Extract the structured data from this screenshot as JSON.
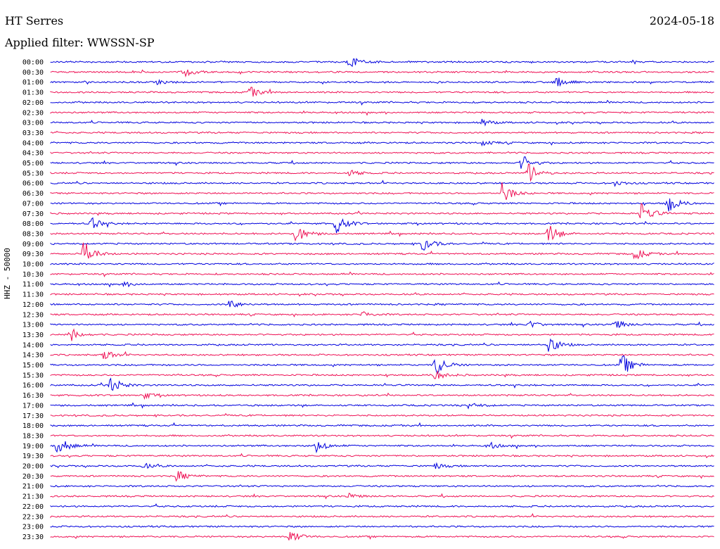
{
  "header": {
    "station": "HT Serres",
    "date": "2024-05-18",
    "filter_label": "Applied filter: WWSSN-SP"
  },
  "chart_data": {
    "type": "line",
    "ylabel": "HHZ - 50000",
    "colors": {
      "even_trace": "#0000dd",
      "odd_trace": "#ee1155"
    },
    "categories": [
      "00:00",
      "00:30",
      "01:00",
      "01:30",
      "02:00",
      "02:30",
      "03:00",
      "03:30",
      "04:00",
      "04:30",
      "05:00",
      "05:30",
      "06:00",
      "06:30",
      "07:00",
      "07:30",
      "08:00",
      "08:30",
      "09:00",
      "09:30",
      "10:00",
      "10:30",
      "11:00",
      "11:30",
      "12:00",
      "12:30",
      "13:00",
      "13:30",
      "14:00",
      "14:30",
      "15:00",
      "15:30",
      "16:00",
      "16:30",
      "17:00",
      "17:30",
      "18:00",
      "18:30",
      "19:00",
      "19:30",
      "20:00",
      "20:30",
      "21:00",
      "21:30",
      "22:00",
      "22:30",
      "23:00",
      "23:30"
    ],
    "events": [
      {
        "row": 0,
        "pos": 0.45,
        "amp": 9
      },
      {
        "row": 1,
        "pos": 0.2,
        "amp": 7
      },
      {
        "row": 2,
        "pos": 0.16,
        "amp": 3
      },
      {
        "row": 2,
        "pos": 0.76,
        "amp": 9
      },
      {
        "row": 3,
        "pos": 0.3,
        "amp": 8
      },
      {
        "row": 6,
        "pos": 0.65,
        "amp": 5
      },
      {
        "row": 8,
        "pos": 0.65,
        "amp": 4
      },
      {
        "row": 10,
        "pos": 0.71,
        "amp": 12
      },
      {
        "row": 11,
        "pos": 0.72,
        "amp": 14
      },
      {
        "row": 11,
        "pos": 0.45,
        "amp": 5
      },
      {
        "row": 12,
        "pos": 0.85,
        "amp": 4
      },
      {
        "row": 13,
        "pos": 0.68,
        "amp": 16
      },
      {
        "row": 14,
        "pos": 0.93,
        "amp": 14
      },
      {
        "row": 15,
        "pos": 0.89,
        "amp": 18
      },
      {
        "row": 16,
        "pos": 0.06,
        "amp": 10
      },
      {
        "row": 16,
        "pos": 0.43,
        "amp": 14
      },
      {
        "row": 17,
        "pos": 0.37,
        "amp": 14
      },
      {
        "row": 17,
        "pos": 0.75,
        "amp": 14
      },
      {
        "row": 18,
        "pos": 0.56,
        "amp": 12
      },
      {
        "row": 19,
        "pos": 0.05,
        "amp": 20
      },
      {
        "row": 19,
        "pos": 0.88,
        "amp": 9
      },
      {
        "row": 22,
        "pos": 0.11,
        "amp": 3
      },
      {
        "row": 24,
        "pos": 0.27,
        "amp": 7
      },
      {
        "row": 25,
        "pos": 0.47,
        "amp": 4
      },
      {
        "row": 26,
        "pos": 0.72,
        "amp": 6
      },
      {
        "row": 26,
        "pos": 0.85,
        "amp": 8
      },
      {
        "row": 27,
        "pos": 0.03,
        "amp": 10
      },
      {
        "row": 28,
        "pos": 0.75,
        "amp": 14
      },
      {
        "row": 29,
        "pos": 0.08,
        "amp": 8
      },
      {
        "row": 30,
        "pos": 0.58,
        "amp": 16
      },
      {
        "row": 30,
        "pos": 0.86,
        "amp": 16
      },
      {
        "row": 31,
        "pos": 0.58,
        "amp": 8
      },
      {
        "row": 32,
        "pos": 0.09,
        "amp": 13
      },
      {
        "row": 33,
        "pos": 0.14,
        "amp": 5
      },
      {
        "row": 34,
        "pos": 0.63,
        "amp": 5
      },
      {
        "row": 38,
        "pos": 0.01,
        "amp": 16
      },
      {
        "row": 38,
        "pos": 0.4,
        "amp": 10
      },
      {
        "row": 38,
        "pos": 0.66,
        "amp": 5
      },
      {
        "row": 40,
        "pos": 0.14,
        "amp": 4
      },
      {
        "row": 40,
        "pos": 0.58,
        "amp": 4
      },
      {
        "row": 41,
        "pos": 0.19,
        "amp": 8
      },
      {
        "row": 43,
        "pos": 0.45,
        "amp": 4
      },
      {
        "row": 47,
        "pos": 0.36,
        "amp": 10
      }
    ]
  }
}
